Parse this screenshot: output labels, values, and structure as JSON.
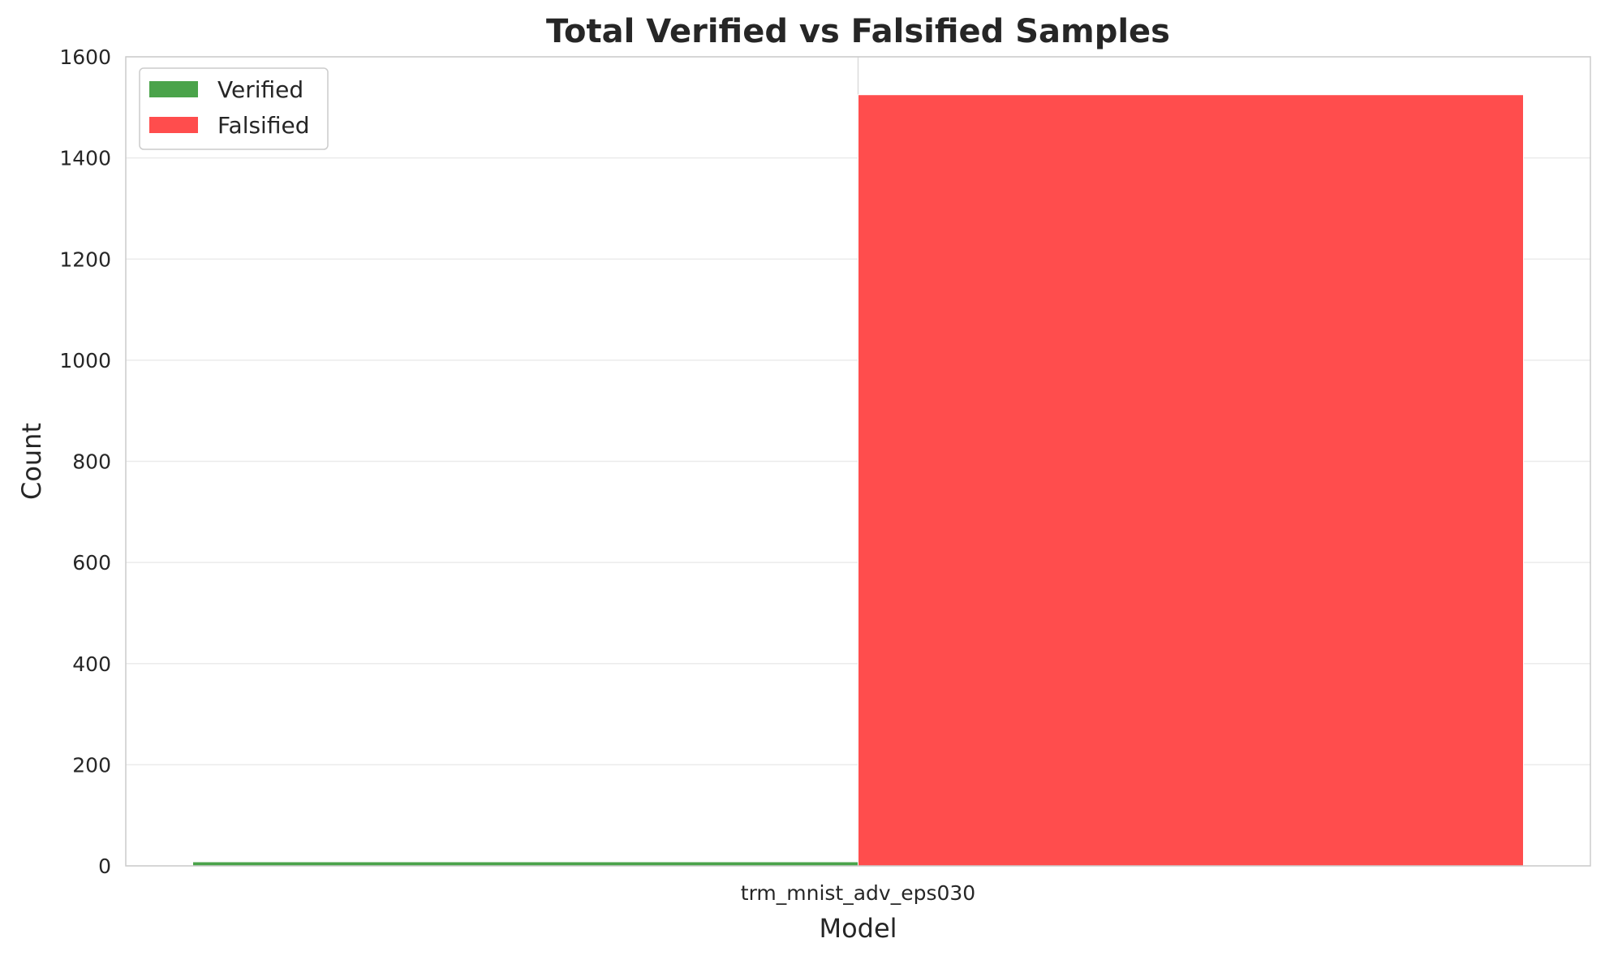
{
  "chart_data": {
    "type": "bar",
    "title": "Total Verified vs Falsified Samples",
    "xlabel": "Model",
    "ylabel": "Count",
    "categories": [
      "trm_mnist_adv_eps030"
    ],
    "series": [
      {
        "name": "Verified",
        "values": [
          8
        ],
        "color": "#4aa34a"
      },
      {
        "name": "Falsified",
        "values": [
          1525
        ],
        "color": "#ff4d4d"
      }
    ],
    "ylim": [
      0,
      1600
    ],
    "yticks": [
      0,
      200,
      400,
      600,
      800,
      1000,
      1200,
      1400,
      1600
    ],
    "yticklabels": [
      "0",
      "200",
      "400",
      "600",
      "800",
      "1000",
      "1200",
      "1400",
      "1600"
    ],
    "grid": true,
    "legend": "upper-left"
  }
}
